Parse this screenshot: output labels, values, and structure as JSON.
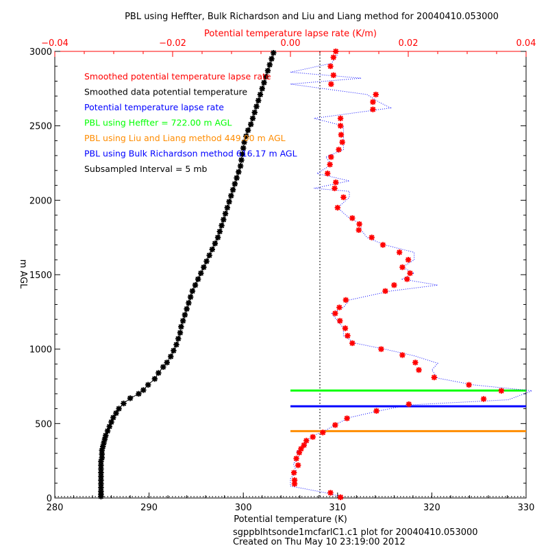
{
  "title": "PBL using Heffter, Bulk Richardson and Liu and Liang method for 20040410.053000",
  "footer": {
    "line1": "sgppblhtsonde1mcfarlC1.c1 plot  for 20040410.053000",
    "line2": "Created on Thu May 10 23:19:00 2012"
  },
  "colors": {
    "red": "#ff0000",
    "black": "#000000",
    "blue": "#0000ff",
    "green": "#00ff00",
    "orange": "#ff8c00"
  },
  "chart_data": {
    "type": "line",
    "grid": false,
    "legend_position": "top-left",
    "xlabel_bottom": "Potential temperature (K)",
    "xlabel_top": "Potential temperature lapse rate (K/m)",
    "ylabel": "m AGL",
    "xlim_bottom": [
      280,
      330
    ],
    "xlim_top": [
      -0.04,
      0.04
    ],
    "ylim": [
      0,
      3000
    ],
    "xticks_bottom": [
      "280",
      "290",
      "300",
      "310",
      "320",
      "330"
    ],
    "xticks_top": [
      "−0.04",
      "−0.02",
      "0.00",
      "0.02",
      "0.04"
    ],
    "yticks": [
      "0",
      "500",
      "1000",
      "1500",
      "2000",
      "2500",
      "3000"
    ],
    "legend": [
      {
        "label": "Smoothed potential temperature lapse rate",
        "color": "#ff0000"
      },
      {
        "label": "Smoothed data potential temperature",
        "color": "#000000"
      },
      {
        "label": "Potential temperature lapse rate",
        "color": "#0000ff"
      },
      {
        "label": "PBL using Heffter =    722.00 m AGL",
        "color": "#00ff00"
      },
      {
        "label": "PBL using Liu and Liang method  449.00 m AGL",
        "color": "#ff8c00"
      },
      {
        "label": "PBL using Bulk Richardson method  616.17 m AGL",
        "color": "#0000ff"
      },
      {
        "label": "Subsampled Interval = 5 mb",
        "color": "#000000"
      }
    ],
    "pbl_lines": [
      {
        "name": "Heffter",
        "height": 722.0,
        "color": "#00ff00"
      },
      {
        "name": "Liu and Liang",
        "height": 449.0,
        "color": "#ff8c00"
      },
      {
        "name": "Bulk Richardson",
        "height": 616.17,
        "color": "#0000ff"
      }
    ],
    "reference_lapse_rate": 0.005,
    "series": [
      {
        "name": "Smoothed data potential temperature",
        "axis": "bottom",
        "style": "asterisk",
        "color": "#000000",
        "points": [
          [
            284.9,
            10
          ],
          [
            284.9,
            25
          ],
          [
            284.9,
            45
          ],
          [
            284.9,
            70
          ],
          [
            284.9,
            95
          ],
          [
            284.9,
            120
          ],
          [
            284.9,
            145
          ],
          [
            284.9,
            170
          ],
          [
            284.9,
            195
          ],
          [
            284.9,
            220
          ],
          [
            284.9,
            245
          ],
          [
            285.0,
            270
          ],
          [
            285.0,
            295
          ],
          [
            285.0,
            320
          ],
          [
            285.1,
            345
          ],
          [
            285.2,
            370
          ],
          [
            285.3,
            395
          ],
          [
            285.4,
            420
          ],
          [
            285.6,
            450
          ],
          [
            285.8,
            480
          ],
          [
            286.0,
            510
          ],
          [
            286.2,
            540
          ],
          [
            286.5,
            570
          ],
          [
            286.8,
            600
          ],
          [
            287.3,
            635
          ],
          [
            288.0,
            670
          ],
          [
            288.9,
            700
          ],
          [
            289.4,
            725
          ],
          [
            289.9,
            760
          ],
          [
            290.6,
            800
          ],
          [
            291.0,
            840
          ],
          [
            291.5,
            880
          ],
          [
            291.9,
            910
          ],
          [
            292.3,
            950
          ],
          [
            292.6,
            990
          ],
          [
            292.9,
            1030
          ],
          [
            293.1,
            1070
          ],
          [
            293.3,
            1110
          ],
          [
            293.4,
            1150
          ],
          [
            293.6,
            1190
          ],
          [
            293.8,
            1230
          ],
          [
            294.0,
            1270
          ],
          [
            294.2,
            1310
          ],
          [
            294.4,
            1350
          ],
          [
            294.6,
            1390
          ],
          [
            294.9,
            1430
          ],
          [
            295.2,
            1470
          ],
          [
            295.5,
            1510
          ],
          [
            295.8,
            1550
          ],
          [
            296.1,
            1590
          ],
          [
            296.4,
            1630
          ],
          [
            296.7,
            1670
          ],
          [
            297.0,
            1710
          ],
          [
            297.3,
            1750
          ],
          [
            297.5,
            1790
          ],
          [
            297.7,
            1830
          ],
          [
            297.9,
            1870
          ],
          [
            298.1,
            1910
          ],
          [
            298.3,
            1950
          ],
          [
            298.5,
            1990
          ],
          [
            298.7,
            2030
          ],
          [
            298.9,
            2070
          ],
          [
            299.1,
            2110
          ],
          [
            299.3,
            2150
          ],
          [
            299.5,
            2190
          ],
          [
            299.7,
            2230
          ],
          [
            299.8,
            2270
          ],
          [
            299.9,
            2310
          ],
          [
            300.0,
            2350
          ],
          [
            300.1,
            2390
          ],
          [
            300.3,
            2430
          ],
          [
            300.5,
            2470
          ],
          [
            300.8,
            2510
          ],
          [
            301.0,
            2550
          ],
          [
            301.2,
            2590
          ],
          [
            301.4,
            2630
          ],
          [
            301.6,
            2670
          ],
          [
            301.8,
            2710
          ],
          [
            302.0,
            2750
          ],
          [
            302.2,
            2790
          ],
          [
            302.4,
            2830
          ],
          [
            302.6,
            2870
          ],
          [
            302.8,
            2910
          ],
          [
            303.0,
            2950
          ],
          [
            303.2,
            2990
          ]
        ]
      },
      {
        "name": "Smoothed potential temperature lapse rate",
        "axis": "top",
        "style": "asterisk",
        "color": "#ff0000",
        "points": [
          [
            0.0085,
            5
          ],
          [
            0.0068,
            35
          ],
          [
            0.0007,
            95
          ],
          [
            0.0007,
            120
          ],
          [
            0.0006,
            170
          ],
          [
            0.0013,
            220
          ],
          [
            0.001,
            265
          ],
          [
            0.0015,
            305
          ],
          [
            0.0018,
            330
          ],
          [
            0.0023,
            355
          ],
          [
            0.0027,
            385
          ],
          [
            0.0038,
            410
          ],
          [
            0.0055,
            440
          ],
          [
            0.0076,
            490
          ],
          [
            0.0096,
            535
          ],
          [
            0.0146,
            585
          ],
          [
            0.0201,
            630
          ],
          [
            0.0328,
            665
          ],
          [
            0.0358,
            720
          ],
          [
            0.0303,
            760
          ],
          [
            0.0244,
            810
          ],
          [
            0.0218,
            860
          ],
          [
            0.0212,
            910
          ],
          [
            0.019,
            960
          ],
          [
            0.0154,
            1000
          ],
          [
            0.0105,
            1040
          ],
          [
            0.0097,
            1090
          ],
          [
            0.0093,
            1140
          ],
          [
            0.0084,
            1190
          ],
          [
            0.0076,
            1240
          ],
          [
            0.0083,
            1280
          ],
          [
            0.0094,
            1330
          ],
          [
            0.0161,
            1390
          ],
          [
            0.0176,
            1430
          ],
          [
            0.0198,
            1470
          ],
          [
            0.0203,
            1510
          ],
          [
            0.019,
            1550
          ],
          [
            0.02,
            1600
          ],
          [
            0.0185,
            1650
          ],
          [
            0.0157,
            1700
          ],
          [
            0.0138,
            1750
          ],
          [
            0.0116,
            1800
          ],
          [
            0.0117,
            1840
          ],
          [
            0.0105,
            1880
          ],
          [
            0.008,
            1950
          ],
          [
            0.009,
            2020
          ],
          [
            0.0075,
            2080
          ],
          [
            0.0077,
            2120
          ],
          [
            0.0063,
            2180
          ],
          [
            0.0067,
            2240
          ],
          [
            0.0069,
            2290
          ],
          [
            0.0082,
            2340
          ],
          [
            0.0088,
            2390
          ],
          [
            0.0086,
            2440
          ],
          [
            0.0085,
            2500
          ],
          [
            0.0085,
            2550
          ],
          [
            0.014,
            2610
          ],
          [
            0.014,
            2660
          ],
          [
            0.0145,
            2710
          ],
          [
            0.0069,
            2780
          ],
          [
            0.0073,
            2840
          ],
          [
            0.0068,
            2900
          ],
          [
            0.0073,
            2960
          ],
          [
            0.0077,
            3000
          ]
        ]
      },
      {
        "name": "Potential temperature lapse rate",
        "axis": "top",
        "style": "dotted",
        "color": "#0000ff",
        "points": [
          [
            0.009,
            5
          ],
          [
            0.006,
            35
          ],
          [
            0.0,
            80
          ],
          [
            0.0,
            130
          ],
          [
            0.001,
            180
          ],
          [
            0.0005,
            230
          ],
          [
            0.0015,
            270
          ],
          [
            0.001,
            310
          ],
          [
            0.0025,
            350
          ],
          [
            0.003,
            390
          ],
          [
            0.004,
            420
          ],
          [
            0.006,
            455
          ],
          [
            0.008,
            500
          ],
          [
            0.01,
            540
          ],
          [
            0.015,
            585
          ],
          [
            0.02,
            625
          ],
          [
            0.037,
            660
          ],
          [
            0.041,
            720
          ],
          [
            0.031,
            760
          ],
          [
            0.025,
            805
          ],
          [
            0.024,
            860
          ],
          [
            0.025,
            905
          ],
          [
            0.021,
            955
          ],
          [
            0.016,
            1000
          ],
          [
            0.011,
            1040
          ],
          [
            0.009,
            1090
          ],
          [
            0.009,
            1140
          ],
          [
            0.008,
            1190
          ],
          [
            0.007,
            1240
          ],
          [
            0.009,
            1280
          ],
          [
            0.01,
            1330
          ],
          [
            0.017,
            1390
          ],
          [
            0.025,
            1430
          ],
          [
            0.019,
            1470
          ],
          [
            0.021,
            1510
          ],
          [
            0.019,
            1550
          ],
          [
            0.021,
            1600
          ],
          [
            0.021,
            1650
          ],
          [
            0.016,
            1700
          ],
          [
            0.013,
            1750
          ],
          [
            0.012,
            1800
          ],
          [
            0.012,
            1840
          ],
          [
            0.01,
            1880
          ],
          [
            0.008,
            1950
          ],
          [
            0.01,
            2020
          ],
          [
            0.01,
            2060
          ],
          [
            0.004,
            2080
          ],
          [
            0.01,
            2130
          ],
          [
            0.0045,
            2180
          ],
          [
            0.007,
            2240
          ],
          [
            0.006,
            2290
          ],
          [
            0.009,
            2340
          ],
          [
            0.009,
            2390
          ],
          [
            0.009,
            2440
          ],
          [
            0.009,
            2500
          ],
          [
            0.004,
            2550
          ],
          [
            0.017,
            2620
          ],
          [
            0.015,
            2660
          ],
          [
            0.013,
            2710
          ],
          [
            0.0,
            2780
          ],
          [
            0.012,
            2820
          ],
          [
            0.0,
            2860
          ],
          [
            0.007,
            2920
          ],
          [
            0.008,
            2980
          ]
        ]
      }
    ]
  }
}
